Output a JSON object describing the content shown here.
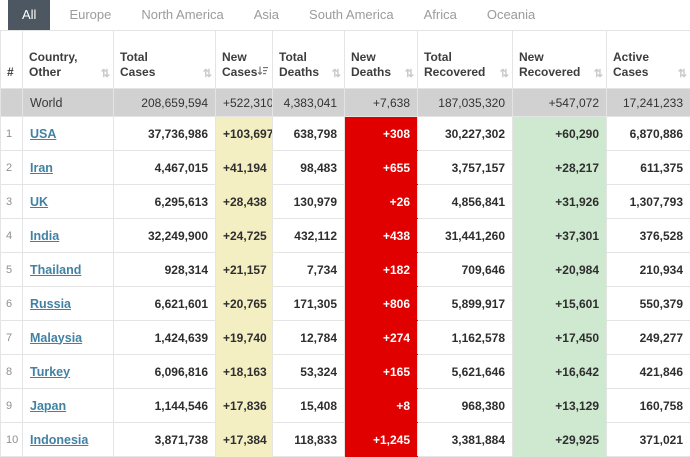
{
  "tabs": [
    {
      "label": "All",
      "active": true
    },
    {
      "label": "Europe",
      "active": false
    },
    {
      "label": "North America",
      "active": false
    },
    {
      "label": "Asia",
      "active": false
    },
    {
      "label": "South America",
      "active": false
    },
    {
      "label": "Africa",
      "active": false
    },
    {
      "label": "Oceania",
      "active": false
    }
  ],
  "table": {
    "columns": [
      {
        "id": "rank",
        "label": "#",
        "sort": "none"
      },
      {
        "id": "country",
        "label": "Country,\nOther",
        "sort": "both"
      },
      {
        "id": "total_cases",
        "label": "Total\nCases",
        "sort": "both"
      },
      {
        "id": "new_cases",
        "label": "New\nCases",
        "sort": "desc"
      },
      {
        "id": "total_deaths",
        "label": "Total\nDeaths",
        "sort": "both"
      },
      {
        "id": "new_deaths",
        "label": "New\nDeaths",
        "sort": "both"
      },
      {
        "id": "total_recovered",
        "label": "Total\nRecovered",
        "sort": "both"
      },
      {
        "id": "new_recovered",
        "label": "New\nRecovered",
        "sort": "both"
      },
      {
        "id": "active_cases",
        "label": "Active\nCases",
        "sort": "both"
      }
    ],
    "world": {
      "name": "World",
      "total_cases": "208,659,594",
      "new_cases": "+522,310",
      "total_deaths": "4,383,041",
      "new_deaths": "+7,638",
      "total_recovered": "187,035,320",
      "new_recovered": "+547,072",
      "active_cases": "17,241,233"
    },
    "rows": [
      {
        "rank": "1",
        "country": "USA",
        "total_cases": "37,736,986",
        "new_cases": "+103,697",
        "total_deaths": "638,798",
        "new_deaths": "+308",
        "total_recovered": "30,227,302",
        "new_recovered": "+60,290",
        "active_cases": "6,870,886"
      },
      {
        "rank": "2",
        "country": "Iran",
        "total_cases": "4,467,015",
        "new_cases": "+41,194",
        "total_deaths": "98,483",
        "new_deaths": "+655",
        "total_recovered": "3,757,157",
        "new_recovered": "+28,217",
        "active_cases": "611,375"
      },
      {
        "rank": "3",
        "country": "UK",
        "total_cases": "6,295,613",
        "new_cases": "+28,438",
        "total_deaths": "130,979",
        "new_deaths": "+26",
        "total_recovered": "4,856,841",
        "new_recovered": "+31,926",
        "active_cases": "1,307,793"
      },
      {
        "rank": "4",
        "country": "India",
        "total_cases": "32,249,900",
        "new_cases": "+24,725",
        "total_deaths": "432,112",
        "new_deaths": "+438",
        "total_recovered": "31,441,260",
        "new_recovered": "+37,301",
        "active_cases": "376,528"
      },
      {
        "rank": "5",
        "country": "Thailand",
        "total_cases": "928,314",
        "new_cases": "+21,157",
        "total_deaths": "7,734",
        "new_deaths": "+182",
        "total_recovered": "709,646",
        "new_recovered": "+20,984",
        "active_cases": "210,934"
      },
      {
        "rank": "6",
        "country": "Russia",
        "total_cases": "6,621,601",
        "new_cases": "+20,765",
        "total_deaths": "171,305",
        "new_deaths": "+806",
        "total_recovered": "5,899,917",
        "new_recovered": "+15,601",
        "active_cases": "550,379"
      },
      {
        "rank": "7",
        "country": "Malaysia",
        "total_cases": "1,424,639",
        "new_cases": "+19,740",
        "total_deaths": "12,784",
        "new_deaths": "+274",
        "total_recovered": "1,162,578",
        "new_recovered": "+17,450",
        "active_cases": "249,277"
      },
      {
        "rank": "8",
        "country": "Turkey",
        "total_cases": "6,096,816",
        "new_cases": "+18,163",
        "total_deaths": "53,324",
        "new_deaths": "+165",
        "total_recovered": "5,621,646",
        "new_recovered": "+16,642",
        "active_cases": "421,846"
      },
      {
        "rank": "9",
        "country": "Japan",
        "total_cases": "1,144,546",
        "new_cases": "+17,836",
        "total_deaths": "15,408",
        "new_deaths": "+8",
        "total_recovered": "968,380",
        "new_recovered": "+13,129",
        "active_cases": "160,758"
      },
      {
        "rank": "10",
        "country": "Indonesia",
        "total_cases": "3,871,738",
        "new_cases": "+17,384",
        "total_deaths": "118,833",
        "new_deaths": "+1,245",
        "total_recovered": "3,381,884",
        "new_recovered": "+29,925",
        "active_cases": "371,021"
      }
    ]
  },
  "icons": {
    "sort_both": "⇅",
    "sort_desc": "sort-amount-desc"
  },
  "colors": {
    "active_tab_bg": "#4d5761",
    "new_cases_highlight": "#f3efc3",
    "new_deaths_highlight": "#e00000",
    "new_recovered_highlight": "#cee9cf",
    "world_row_bg": "#d1d1d1",
    "country_link": "#4182a4"
  }
}
